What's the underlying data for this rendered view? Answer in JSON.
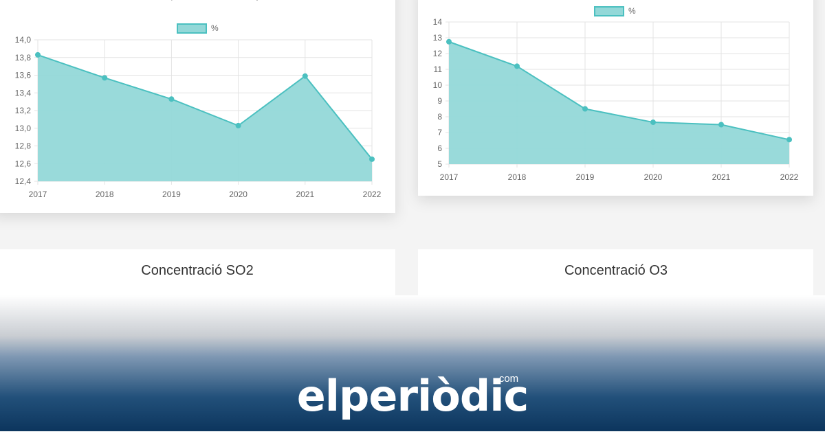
{
  "chart_data": [
    {
      "type": "area",
      "subtitle": "unitats per volum d'aire mostrejat",
      "categories": [
        "2017",
        "2018",
        "2019",
        "2020",
        "2021",
        "2022"
      ],
      "series": [
        {
          "name": "%",
          "color": "#4bc0c0",
          "fill": "#93d8d8",
          "values": [
            13.83,
            13.57,
            13.33,
            13.03,
            13.59,
            12.65
          ]
        }
      ],
      "ylim": [
        12.4,
        14.0
      ],
      "yticks": [
        {
          "value": 12.4,
          "label": "12,4"
        },
        {
          "value": 12.6,
          "label": "12,6"
        },
        {
          "value": 12.8,
          "label": "12,8"
        },
        {
          "value": 13.0,
          "label": "13,0"
        },
        {
          "value": 13.2,
          "label": "13,2"
        },
        {
          "value": 13.4,
          "label": "13,4"
        },
        {
          "value": 13.6,
          "label": "13,6"
        },
        {
          "value": 13.8,
          "label": "13,8"
        },
        {
          "value": 14.0,
          "label": "14,0"
        }
      ],
      "grid": true,
      "legend": "top"
    },
    {
      "type": "area",
      "categories": [
        "2017",
        "2018",
        "2019",
        "2020",
        "2021",
        "2022"
      ],
      "series": [
        {
          "name": "%",
          "color": "#4bc0c0",
          "fill": "#93d8d8",
          "values": [
            12.75,
            11.2,
            8.5,
            7.65,
            7.5,
            6.55
          ]
        }
      ],
      "ylim": [
        5,
        14
      ],
      "yticks": [
        5,
        6,
        7,
        8,
        9,
        10,
        11,
        12,
        13,
        14
      ],
      "grid": true,
      "legend": "top"
    }
  ],
  "cards": [
    {
      "title": "Concentració SO2"
    },
    {
      "title": "Concentració O3"
    }
  ],
  "brand": {
    "name": "elperiòdic",
    "suffix": "com"
  }
}
